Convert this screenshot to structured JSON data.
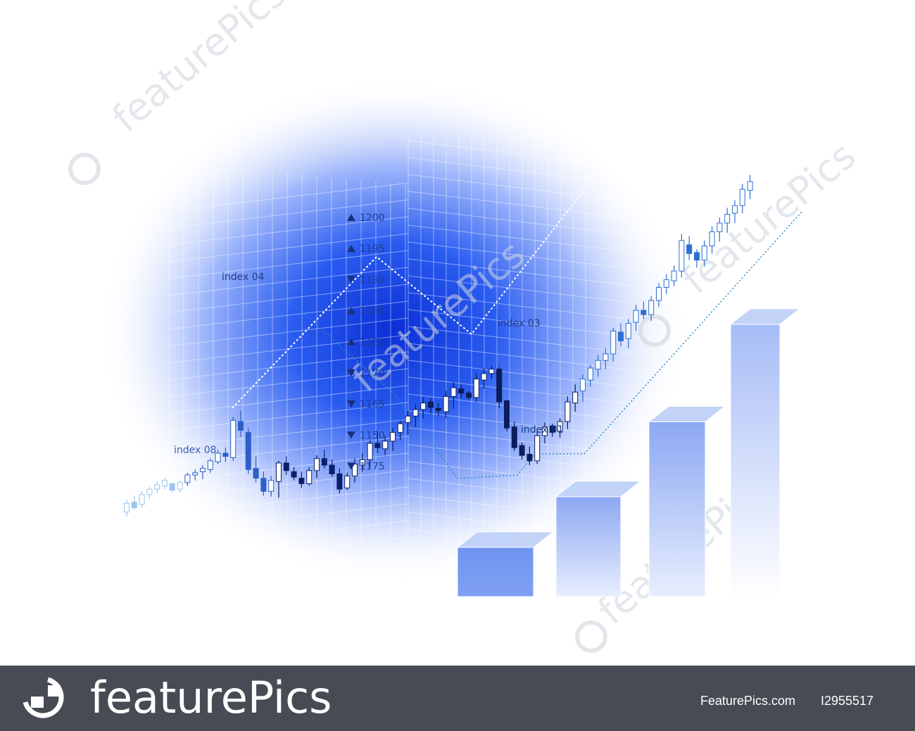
{
  "chart_data": {
    "type": "bar",
    "price_labels": [
      {
        "dir": "up",
        "value": "1200"
      },
      {
        "dir": "up",
        "value": "1195"
      },
      {
        "dir": "down",
        "value": "1190"
      },
      {
        "dir": "up",
        "value": "1185"
      },
      {
        "dir": "up",
        "value": "1180"
      },
      {
        "dir": "down",
        "value": "1170"
      },
      {
        "dir": "down",
        "value": "1165"
      },
      {
        "dir": "down",
        "value": "1150"
      },
      {
        "dir": "down",
        "value": "1175"
      }
    ],
    "annotations": [
      "index 04",
      "index 03",
      "index 01",
      "index 08"
    ],
    "bars": {
      "values": [
        1,
        2.03,
        3.55,
        5.53
      ]
    },
    "candlesticks": [
      [
        -0.9,
        0.6,
        -0.5,
        0.3
      ],
      [
        -0.3,
        1.0,
        0.4,
        -0.1
      ],
      [
        -0.1,
        1.4,
        0.2,
        1.1
      ],
      [
        0.7,
        1.8,
        1.1,
        1.6
      ],
      [
        1.2,
        2.3,
        1.6,
        2.0
      ],
      [
        1.6,
        2.6,
        1.9,
        2.4
      ],
      [
        1.3,
        2.2,
        2.1,
        1.5
      ],
      [
        1.3,
        2.4,
        1.6,
        2.2
      ],
      [
        1.9,
        3.1,
        2.2,
        2.9
      ],
      [
        2.4,
        3.4,
        2.9,
        3.1
      ],
      [
        2.5,
        3.8,
        3.2,
        3.5
      ],
      [
        3.1,
        4.4,
        3.4,
        4.2
      ],
      [
        3.9,
        5.2,
        4.1,
        4.9
      ],
      [
        4.1,
        5.4,
        4.9,
        4.6
      ],
      [
        4.2,
        8.2,
        4.5,
        7.9
      ],
      [
        6.4,
        8.8,
        7.8,
        7.0
      ],
      [
        3.0,
        7.2,
        6.8,
        3.4
      ],
      [
        2.2,
        4.6,
        3.5,
        2.6
      ],
      [
        1.0,
        3.2,
        2.6,
        1.4
      ],
      [
        0.9,
        2.8,
        1.4,
        2.4
      ],
      [
        0.8,
        4.2,
        2.3,
        4.0
      ],
      [
        2.9,
        4.6,
        4.0,
        3.3
      ],
      [
        2.4,
        3.6,
        3.2,
        2.7
      ],
      [
        1.7,
        3.2,
        2.6,
        2.1
      ],
      [
        1.9,
        3.6,
        2.1,
        3.3
      ],
      [
        2.6,
        4.7,
        3.3,
        4.4
      ],
      [
        3.5,
        5.2,
        4.4,
        3.8
      ],
      [
        2.7,
        4.3,
        3.8,
        3.0
      ],
      [
        1.2,
        3.5,
        3.0,
        1.6
      ],
      [
        1.5,
        3.1,
        1.7,
        2.8
      ],
      [
        2.2,
        4.4,
        2.8,
        3.9
      ],
      [
        3.2,
        4.9,
        3.8,
        4.3
      ],
      [
        3.6,
        6.1,
        4.3,
        5.8
      ],
      [
        4.9,
        6.9,
        5.8,
        5.4
      ],
      [
        4.7,
        6.5,
        5.3,
        6.0
      ],
      [
        5.1,
        7.2,
        6.0,
        6.8
      ],
      [
        6.1,
        7.9,
        6.8,
        7.6
      ],
      [
        6.6,
        8.8,
        7.7,
        8.3
      ],
      [
        7.3,
        9.4,
        8.3,
        8.9
      ],
      [
        8.1,
        10.0,
        8.9,
        9.5
      ],
      [
        8.5,
        9.9,
        9.6,
        9.1
      ],
      [
        8.3,
        9.5,
        9.0,
        8.8
      ],
      [
        8.1,
        10.6,
        8.7,
        10.1
      ],
      [
        9.0,
        11.4,
        10.1,
        10.9
      ],
      [
        9.9,
        11.2,
        10.8,
        10.4
      ],
      [
        9.8,
        10.6,
        10.4,
        10.0
      ],
      [
        9.6,
        12.2,
        10.0,
        11.7
      ],
      [
        10.8,
        12.7,
        11.6,
        12.2
      ],
      [
        11.7,
        12.9,
        12.2,
        12.6
      ],
      [
        9.0,
        12.8,
        12.6,
        9.6
      ],
      [
        6.9,
        9.8,
        9.7,
        7.2
      ],
      [
        5.1,
        7.8,
        7.3,
        5.4
      ],
      [
        4.3,
        5.9,
        5.6,
        4.7
      ],
      [
        3.8,
        5.5,
        4.8,
        4.2
      ],
      [
        3.9,
        6.9,
        4.2,
        6.5
      ],
      [
        5.8,
        7.7,
        6.5,
        7.3
      ],
      [
        6.4,
        7.6,
        7.4,
        6.8
      ],
      [
        6.3,
        8.1,
        6.9,
        7.8
      ],
      [
        7.1,
        10.1,
        7.8,
        9.6
      ],
      [
        8.7,
        11.2,
        9.5,
        10.5
      ],
      [
        9.6,
        12.1,
        10.6,
        11.7
      ],
      [
        11.0,
        13.0,
        11.6,
        12.7
      ],
      [
        11.9,
        13.9,
        12.6,
        13.4
      ],
      [
        12.6,
        14.5,
        13.4,
        14.0
      ],
      [
        13.3,
        16.4,
        14.0,
        16.1
      ],
      [
        14.7,
        16.8,
        16.0,
        15.2
      ],
      [
        14.5,
        17.2,
        15.4,
        16.8
      ],
      [
        16.1,
        18.5,
        16.9,
        18.0
      ],
      [
        17.2,
        18.8,
        18.0,
        17.6
      ],
      [
        17.0,
        19.3,
        17.6,
        18.9
      ],
      [
        18.3,
        20.5,
        18.9,
        20.1
      ],
      [
        19.5,
        21.3,
        20.1,
        20.8
      ],
      [
        20.2,
        22.1,
        20.7,
        21.6
      ],
      [
        21.0,
        25.0,
        21.6,
        24.4
      ],
      [
        22.6,
        24.8,
        24.0,
        23.2
      ],
      [
        21.9,
        23.6,
        23.3,
        22.6
      ],
      [
        22.0,
        24.4,
        22.6,
        23.9
      ],
      [
        23.2,
        25.7,
        23.9,
        25.2
      ],
      [
        24.3,
        26.5,
        25.2,
        26.0
      ],
      [
        25.1,
        27.4,
        26.0,
        26.8
      ],
      [
        26.0,
        28.1,
        26.9,
        27.6
      ],
      [
        26.9,
        29.6,
        27.6,
        29.1
      ],
      [
        28.2,
        30.4,
        29.0,
        29.8
      ]
    ],
    "series": [
      {
        "values": [
          0
        ]
      }
    ]
  },
  "watermark": {
    "text": "featurePics"
  },
  "footer": {
    "brand": "featurePics",
    "site": "FeaturePics.com",
    "image_id": "I2955517"
  }
}
